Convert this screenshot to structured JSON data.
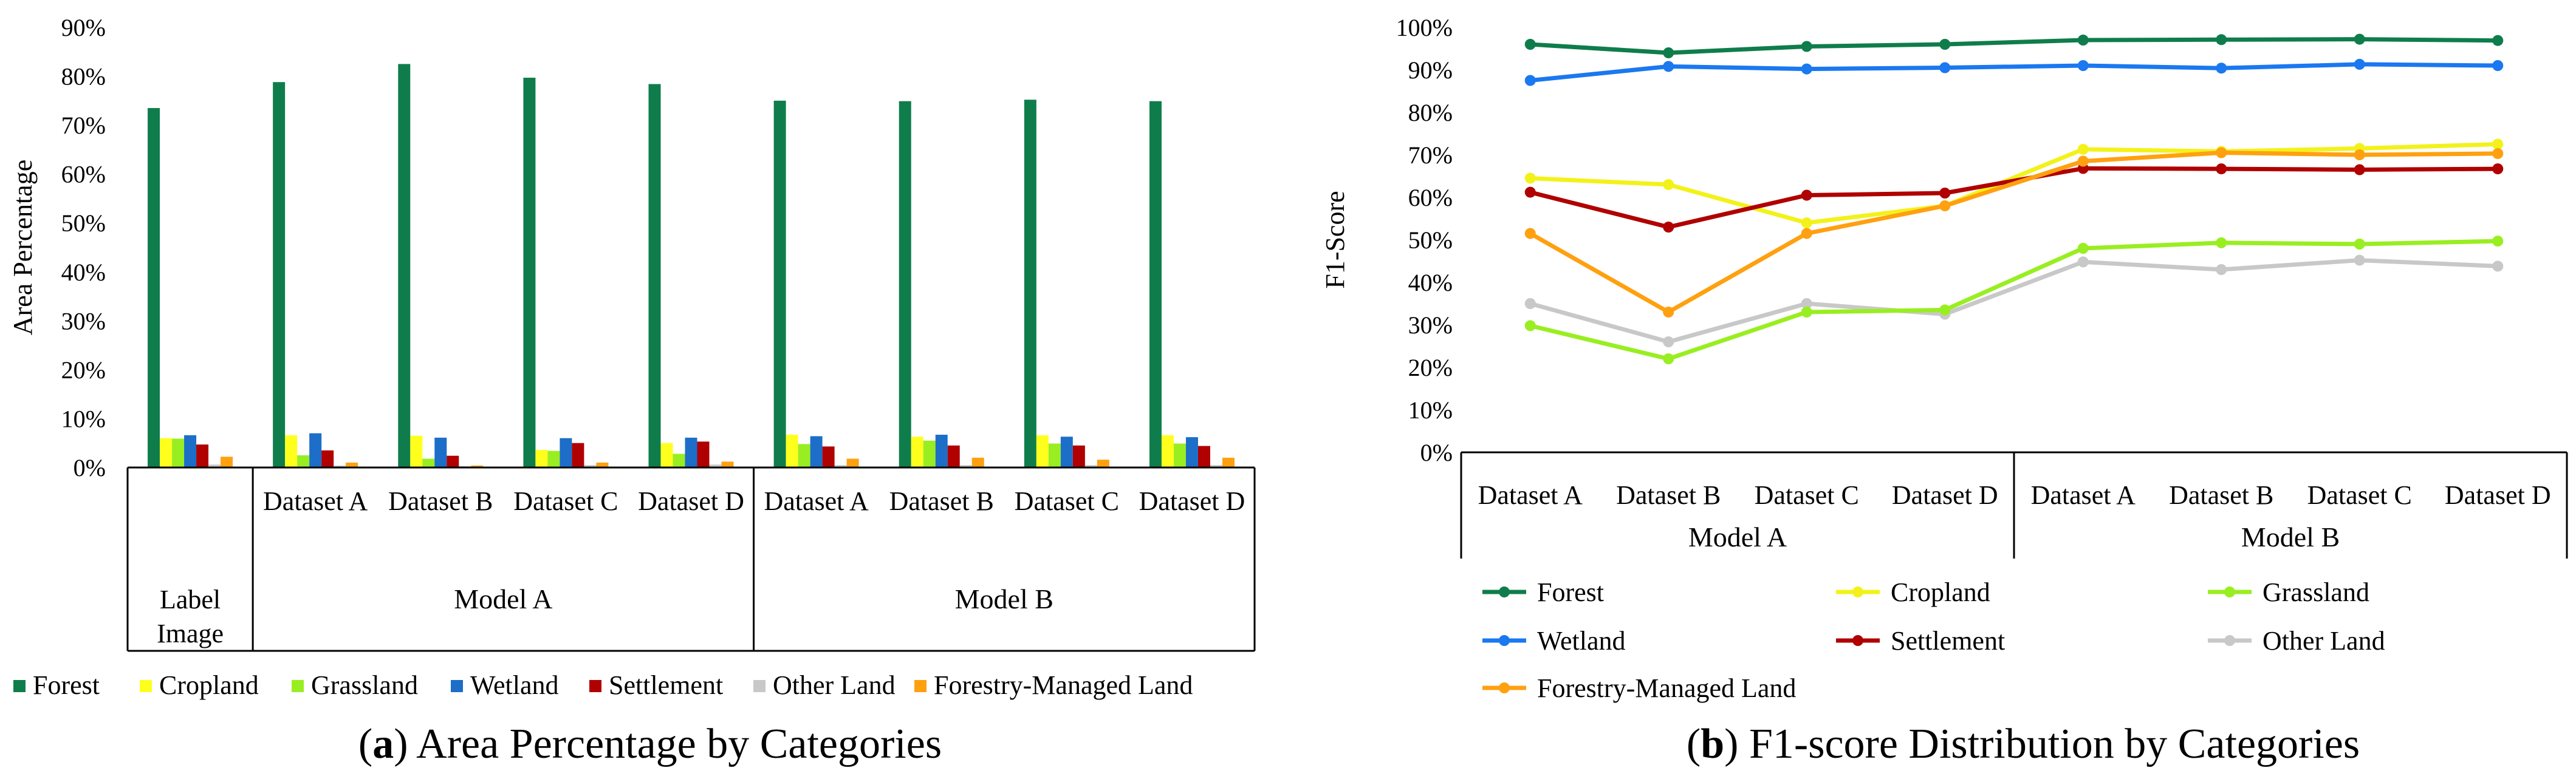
{
  "figure": {
    "captions": [
      {
        "letter": "a",
        "text": " Area Percentage by Categories"
      },
      {
        "letter": "b",
        "text": " F1-score Distribution by Categories"
      }
    ]
  },
  "colors": {
    "Forest": "#0f7d4b",
    "Cropland": "#ffff1e",
    "Grassland": "#99ee22",
    "Wetland": "#1c6ec8",
    "Settlement": "#b00000",
    "Other Land": "#c8c8c8",
    "Forestry-Managed Land": "#ffa010",
    "Wetland line": "#1a78f0",
    "Cropland line": "#f2f21a"
  },
  "chart_data": [
    {
      "type": "bar",
      "title": "Area Percentage by Categories",
      "xlabel": "",
      "ylabel": "Area Percentage",
      "ylim": [
        0,
        90
      ],
      "yticks": [
        "0%",
        "10%",
        "20%",
        "30%",
        "40%",
        "50%",
        "60%",
        "70%",
        "80%",
        "90%"
      ],
      "categories": [
        "Label Image",
        "Dataset A",
        "Dataset B",
        "Dataset C",
        "Dataset D",
        "Dataset A",
        "Dataset B",
        "Dataset C",
        "Dataset D"
      ],
      "groups": [
        {
          "label": "Label Image",
          "categories": [
            "Label Image"
          ]
        },
        {
          "label": "Model A",
          "categories": [
            "Dataset A",
            "Dataset B",
            "Dataset C",
            "Dataset D"
          ]
        },
        {
          "label": "Model B",
          "categories": [
            "Dataset A",
            "Dataset B",
            "Dataset C",
            "Dataset D"
          ]
        }
      ],
      "series": [
        {
          "name": "Forest",
          "values": [
            73.5,
            78.8,
            82.5,
            79.7,
            78.4,
            75.0,
            74.9,
            75.2,
            74.9
          ]
        },
        {
          "name": "Cropland",
          "values": [
            6.0,
            6.6,
            6.5,
            3.6,
            5.0,
            6.7,
            6.3,
            6.6,
            6.6
          ]
        },
        {
          "name": "Grassland",
          "values": [
            5.9,
            2.5,
            1.8,
            3.4,
            2.8,
            4.8,
            5.5,
            4.9,
            4.9
          ]
        },
        {
          "name": "Wetland",
          "values": [
            6.6,
            7.0,
            6.1,
            6.0,
            6.1,
            6.4,
            6.7,
            6.3,
            6.2
          ]
        },
        {
          "name": "Settlement",
          "values": [
            4.7,
            3.5,
            2.4,
            5.0,
            5.3,
            4.3,
            4.5,
            4.5,
            4.4
          ]
        },
        {
          "name": "Other Land",
          "values": [
            0.6,
            0.4,
            0.3,
            0.5,
            0.6,
            0.5,
            0.5,
            0.5,
            0.5
          ]
        },
        {
          "name": "Forestry-Managed Land",
          "values": [
            2.2,
            1.0,
            0.4,
            1.0,
            1.2,
            1.8,
            2.0,
            1.6,
            2.0
          ]
        }
      ],
      "legend": [
        "Forest",
        "Cropland",
        "Grassland",
        "Wetland",
        "Settlement",
        "Other Land",
        "Forestry-Managed Land"
      ],
      "legend_position": "bottom"
    },
    {
      "type": "line",
      "title": "F1-score Distribution by Categories",
      "xlabel": "",
      "ylabel": "F1-Score",
      "ylim": [
        0,
        100
      ],
      "yticks": [
        "0%",
        "10%",
        "20%",
        "30%",
        "40%",
        "50%",
        "60%",
        "70%",
        "80%",
        "90%",
        "100%"
      ],
      "categories": [
        "Dataset A",
        "Dataset B",
        "Dataset C",
        "Dataset D",
        "Dataset A",
        "Dataset B",
        "Dataset C",
        "Dataset D"
      ],
      "groups": [
        {
          "label": "Model A",
          "categories": [
            "Dataset A",
            "Dataset B",
            "Dataset C",
            "Dataset D"
          ]
        },
        {
          "label": "Model B",
          "categories": [
            "Dataset A",
            "Dataset B",
            "Dataset C",
            "Dataset D"
          ]
        }
      ],
      "series": [
        {
          "name": "Forest",
          "values": [
            96.0,
            94.0,
            95.5,
            96.0,
            97.0,
            97.1,
            97.2,
            96.9
          ]
        },
        {
          "name": "Wetland",
          "values": [
            87.5,
            90.8,
            90.2,
            90.5,
            91.0,
            90.4,
            91.3,
            91.0
          ]
        },
        {
          "name": "Cropland",
          "values": [
            64.5,
            63.0,
            54.0,
            58.0,
            71.3,
            70.8,
            71.5,
            72.5
          ]
        },
        {
          "name": "Settlement",
          "values": [
            61.2,
            53.0,
            60.5,
            61.0,
            66.8,
            66.7,
            66.5,
            66.7
          ]
        },
        {
          "name": "Forestry-Managed Land",
          "values": [
            51.5,
            33.0,
            51.5,
            58.0,
            68.5,
            70.5,
            70.0,
            70.3
          ]
        },
        {
          "name": "Other Land",
          "values": [
            35.0,
            26.0,
            35.0,
            32.5,
            44.8,
            43.0,
            45.2,
            43.8
          ]
        },
        {
          "name": "Grassland",
          "values": [
            29.8,
            22.0,
            33.0,
            33.5,
            48.0,
            49.3,
            49.0,
            49.7
          ]
        }
      ],
      "legend": [
        "Forest",
        "Cropland",
        "Grassland",
        "Wetland",
        "Settlement",
        "Other Land",
        "Forestry-Managed Land"
      ],
      "legend_position": "bottom"
    }
  ]
}
